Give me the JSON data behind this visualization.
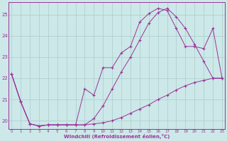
{
  "xlabel": "Windchill (Refroidissement éolien,°C)",
  "bg_color": "#cce8e8",
  "line_color": "#993399",
  "grid_color": "#aacccc",
  "x_ticks": [
    0,
    1,
    2,
    3,
    4,
    5,
    6,
    7,
    8,
    9,
    10,
    11,
    12,
    13,
    14,
    15,
    16,
    17,
    18,
    19,
    20,
    21,
    22,
    23
  ],
  "ylim": [
    19.6,
    25.6
  ],
  "xlim": [
    0,
    23
  ],
  "y_ticks": [
    20,
    21,
    22,
    23,
    24,
    25
  ],
  "line1_x": [
    0,
    1,
    2,
    3,
    4,
    5,
    6,
    7,
    8,
    9,
    10,
    11,
    12,
    13,
    14,
    15,
    16,
    17,
    18,
    19,
    20,
    21,
    22,
    23
  ],
  "line1_y": [
    22.2,
    20.9,
    19.85,
    19.75,
    19.8,
    19.8,
    19.8,
    19.8,
    19.8,
    19.85,
    19.9,
    20.0,
    20.15,
    20.35,
    20.55,
    20.75,
    21.0,
    21.2,
    21.45,
    21.65,
    21.8,
    21.9,
    22.0,
    22.0
  ],
  "line2_x": [
    0,
    1,
    2,
    3,
    4,
    5,
    6,
    7,
    8,
    9,
    10,
    11,
    12,
    13,
    14,
    15,
    16,
    17,
    18,
    19,
    20,
    21,
    22,
    23
  ],
  "line2_y": [
    22.2,
    20.9,
    19.85,
    19.75,
    19.8,
    19.8,
    19.8,
    19.8,
    19.8,
    20.1,
    20.7,
    21.5,
    22.3,
    23.0,
    23.8,
    24.6,
    25.1,
    25.3,
    24.9,
    24.35,
    23.6,
    22.8,
    22.0,
    22.0
  ],
  "line3_x": [
    0,
    1,
    2,
    3,
    4,
    5,
    6,
    7,
    8,
    9,
    10,
    11,
    12,
    13,
    14,
    15,
    16,
    17,
    18,
    19,
    20,
    21,
    22,
    23
  ],
  "line3_y": [
    22.2,
    20.9,
    19.85,
    19.75,
    19.8,
    19.8,
    19.8,
    19.8,
    21.5,
    21.2,
    22.5,
    22.5,
    23.2,
    23.5,
    24.65,
    25.05,
    25.3,
    25.2,
    24.35,
    23.5,
    23.5,
    23.4,
    24.35,
    22.0
  ]
}
